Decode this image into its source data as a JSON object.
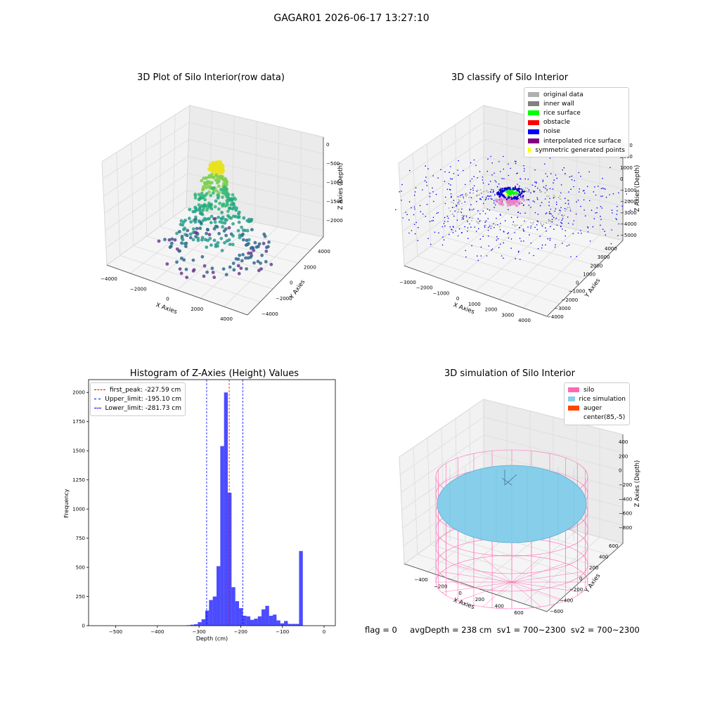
{
  "suptitle": "GAGAR01 2026-06-17 13:27:10",
  "chart_data": [
    {
      "type": "scatter",
      "title": "3D Plot of Silo Interior(row data)",
      "xlabel": "X Axies",
      "ylabel": "Y Axies",
      "zlabel": "Z Axies (Depth)",
      "xticks": [
        "−4000",
        "−2000",
        "0",
        "2000",
        "4000"
      ],
      "yticks": [
        "−4000",
        "−2000",
        "0",
        "2000",
        "4000"
      ],
      "zticks": [
        "0",
        "−500",
        "−1000",
        "−1500",
        "−2000"
      ],
      "xlim": [
        -4500,
        4500
      ],
      "ylim": [
        -4500,
        4500
      ],
      "zlim": [
        -2300,
        100
      ],
      "colormap": "viridis",
      "layers": [
        {
          "z": -300,
          "radius": 400,
          "n": 90,
          "color": "#e8e31f"
        },
        {
          "z": -650,
          "radius": 800,
          "n": 70,
          "color": "#7bd04f"
        },
        {
          "z": -1000,
          "radius": 1150,
          "n": 70,
          "color": "#35b779"
        },
        {
          "z": -1300,
          "radius": 1500,
          "n": 60,
          "color": "#22a884"
        },
        {
          "z": -1700,
          "radius": 2200,
          "n": 70,
          "color": "#2a9d8f"
        },
        {
          "z": -2100,
          "radius": 3000,
          "n": 80,
          "color": "#31688e"
        },
        {
          "z": -2200,
          "radius": 3400,
          "n": 30,
          "color": "#6a3d8f"
        }
      ]
    },
    {
      "type": "scatter",
      "title": "3D classify of Silo Interior",
      "xlabel": "X Axies",
      "ylabel": "Y Axies",
      "zlabel": "Z Axies (Depth)",
      "xticks": [
        "−3000",
        "−2000",
        "−1000",
        "0",
        "1000",
        "2000",
        "3000",
        "4000"
      ],
      "yticks": [
        "−4000",
        "−3000",
        "−2000",
        "−1000",
        "0",
        "1000",
        "2000",
        "3000",
        "4000"
      ],
      "zticks": [
        "2000",
        "1000",
        "0",
        "−1000",
        "−2000",
        "−3000",
        "−4000",
        "−5000"
      ],
      "zticks_visible_top": "3000",
      "legend": [
        {
          "label": "original data",
          "color": "#b0b0b0"
        },
        {
          "label": "inner wall",
          "color": "#808080"
        },
        {
          "label": "rice surface",
          "color": "#00ff00"
        },
        {
          "label": "obstacle",
          "color": "#ff0000"
        },
        {
          "label": "noise",
          "color": "#0000ff"
        },
        {
          "label": "interpolated rice surface",
          "color": "#800080"
        },
        {
          "label": "symmetric generated points",
          "color": "#ffff00"
        }
      ]
    },
    {
      "type": "bar",
      "title": "Histogram of Z-Axies (Height) Values",
      "xlabel": "Depth (cm)",
      "ylabel": "Frequency",
      "xlim": [
        -565,
        27
      ],
      "ylim": [
        0,
        2110
      ],
      "xticks": [
        -500,
        -400,
        -300,
        -200,
        -100,
        0
      ],
      "yticks": [
        0,
        250,
        500,
        750,
        1000,
        1250,
        1500,
        1750,
        2000
      ],
      "bin_start": -330,
      "bin_width": 9,
      "values": [
        4,
        8,
        12,
        30,
        55,
        130,
        220,
        250,
        510,
        1540,
        2000,
        1140,
        330,
        210,
        150,
        85,
        80,
        50,
        60,
        80,
        140,
        170,
        85,
        95,
        45,
        20,
        40,
        15,
        15,
        15,
        640
      ],
      "bar_color": "#0000ff",
      "vlines": [
        {
          "label": "first_peak: -227.59 cm",
          "x": -227.59,
          "color": "#ff0000"
        },
        {
          "label": "Upper_limit: -195.10 cm",
          "x": -195.1,
          "color": "#0000ff"
        },
        {
          "label": "Lower_limit: -281.73 cm",
          "x": -281.73,
          "color": "#0000ff"
        }
      ]
    },
    {
      "type": "surface",
      "title": "3D simulation of Silo Interior",
      "xlabel": "X Axies",
      "ylabel": "Y Axies",
      "zlabel": "Z Axies (Depth)",
      "xticks": [
        "−400",
        "−200",
        "0",
        "200",
        "400",
        "600"
      ],
      "yticks": [
        "−600",
        "−400",
        "−200",
        "0",
        "200",
        "400",
        "600"
      ],
      "zticks": [
        "400",
        "200",
        "0",
        "−200",
        "−400",
        "−600",
        "−800"
      ],
      "legend": [
        {
          "label": "silo",
          "color": "#ff69b4"
        },
        {
          "label": "rice simulation",
          "color": "#87ceeb"
        },
        {
          "label": "auger",
          "color": "#ff4500"
        },
        {
          "label": "center(85,-5)",
          "color": ""
        }
      ]
    }
  ],
  "status": "flag = 0     avgDepth = 238 cm  sv1 = 700~2300  sv2 = 700~2300"
}
